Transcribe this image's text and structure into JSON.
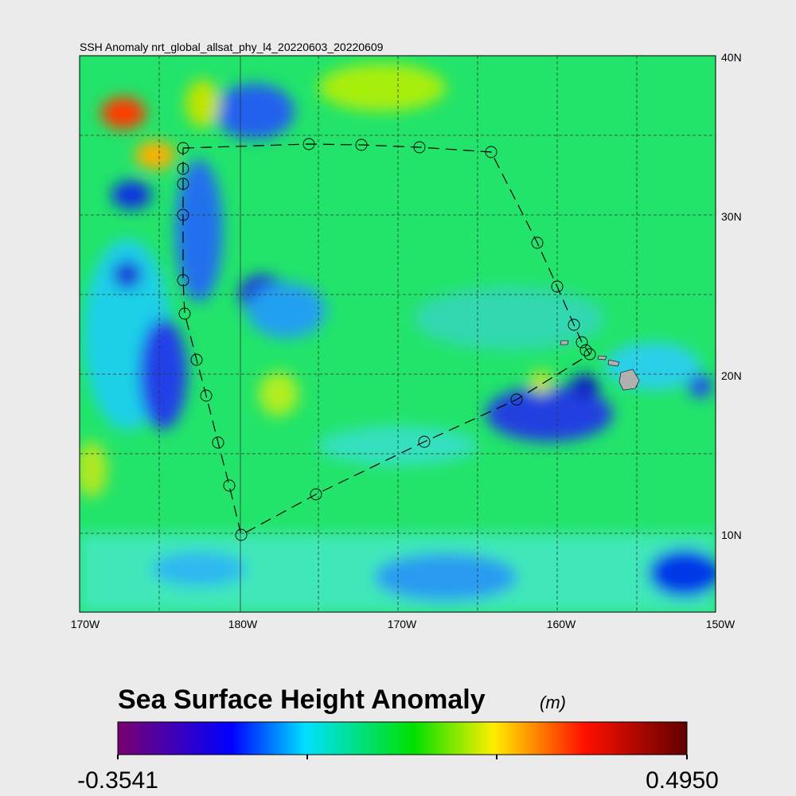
{
  "map": {
    "title": "SSH Anomaly nrt_global_allsat_phy_l4_20220603_20220609",
    "x_labels": [
      "170W",
      "180W",
      "170W",
      "160W",
      "150W"
    ],
    "y_labels": [
      "40N",
      "30N",
      "20N",
      "10N"
    ],
    "colorbar": {
      "title": "Sea Surface Height Anomaly",
      "unit": "(m)",
      "min_label": "-0.3541",
      "max_label": "0.4950"
    }
  }
}
